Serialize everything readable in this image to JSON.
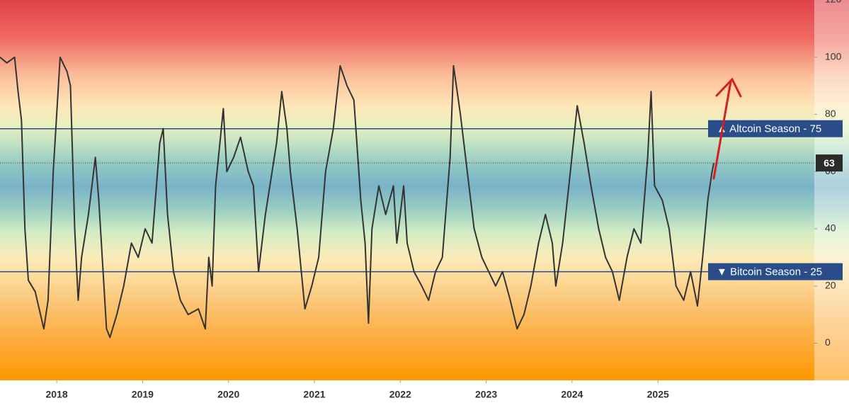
{
  "chart_data": {
    "type": "line",
    "x": [
      2017.34,
      2017.42,
      2017.51,
      2017.55,
      2017.59,
      2017.63,
      2017.67,
      2017.75,
      2017.85,
      2017.9,
      2017.96,
      2018.04,
      2018.12,
      2018.16,
      2018.21,
      2018.25,
      2018.29,
      2018.37,
      2018.45,
      2018.49,
      2018.54,
      2018.58,
      2018.62,
      2018.7,
      2018.78,
      2018.87,
      2018.95,
      2019.03,
      2019.11,
      2019.2,
      2019.24,
      2019.29,
      2019.36,
      2019.44,
      2019.53,
      2019.65,
      2019.73,
      2019.77,
      2019.81,
      2019.85,
      2019.94,
      2019.98,
      2020.06,
      2020.14,
      2020.23,
      2020.29,
      2020.35,
      2020.43,
      2020.56,
      2020.62,
      2020.68,
      2020.72,
      2020.8,
      2020.89,
      2020.97,
      2021.05,
      2021.13,
      2021.22,
      2021.3,
      2021.38,
      2021.46,
      2021.54,
      2021.59,
      2021.63,
      2021.67,
      2021.75,
      2021.83,
      2021.92,
      2021.96,
      2022.04,
      2022.08,
      2022.16,
      2022.25,
      2022.33,
      2022.41,
      2022.49,
      2022.58,
      2022.62,
      2022.7,
      2022.78,
      2022.86,
      2022.95,
      2023.03,
      2023.11,
      2023.19,
      2023.28,
      2023.36,
      2023.44,
      2023.52,
      2023.61,
      2023.69,
      2023.77,
      2023.81,
      2023.89,
      2023.98,
      2024.06,
      2024.14,
      2024.22,
      2024.31,
      2024.39,
      2024.47,
      2024.55,
      2024.64,
      2024.72,
      2024.8,
      2024.88,
      2024.92,
      2024.96,
      2025.05,
      2025.13,
      2025.21,
      2025.3,
      2025.38,
      2025.46,
      2025.52,
      2025.58,
      2025.63,
      2025.65
    ],
    "values": [
      100,
      98,
      100,
      88,
      78,
      40,
      22,
      18,
      5,
      15,
      60,
      100,
      95,
      90,
      40,
      15,
      30,
      45,
      65,
      50,
      25,
      5,
      2,
      10,
      20,
      35,
      30,
      40,
      35,
      70,
      75,
      45,
      25,
      15,
      10,
      12,
      5,
      30,
      20,
      55,
      82,
      60,
      65,
      72,
      60,
      55,
      25,
      45,
      70,
      88,
      75,
      60,
      40,
      12,
      20,
      30,
      60,
      75,
      97,
      90,
      85,
      50,
      35,
      7,
      40,
      55,
      45,
      55,
      35,
      55,
      35,
      25,
      20,
      15,
      25,
      30,
      65,
      97,
      80,
      60,
      40,
      30,
      25,
      20,
      25,
      15,
      5,
      10,
      20,
      35,
      45,
      35,
      20,
      35,
      60,
      83,
      70,
      55,
      40,
      30,
      25,
      15,
      30,
      40,
      35,
      65,
      88,
      55,
      50,
      40,
      20,
      15,
      25,
      13,
      30,
      50,
      60,
      63
    ],
    "color": "#333333",
    "xlim": [
      2017.34,
      2026.82
    ],
    "ylim": [
      -13,
      120
    ],
    "xticks": [
      2018,
      2019,
      2020,
      2021,
      2022,
      2023,
      2024,
      2025
    ],
    "yticks": [
      0,
      20,
      40,
      60,
      80,
      100,
      120
    ],
    "hlines": [
      {
        "value": 75,
        "label": "▲ Altcoin Season - 75",
        "color": "#2a4d8a"
      },
      {
        "value": 25,
        "label": "▼ Bitcoin Season - 25",
        "color": "#2a4d8a"
      }
    ]
  }
}
